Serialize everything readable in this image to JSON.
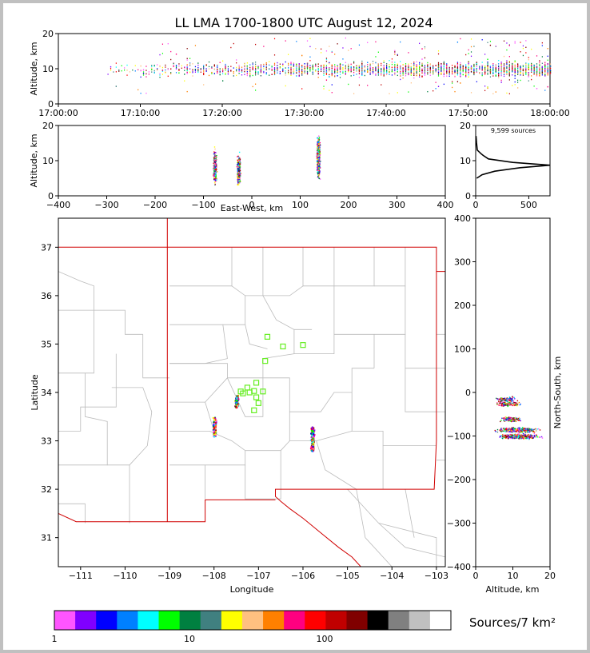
{
  "title": "LL LMA 1700-1800 UTC August 12, 2024",
  "panels": {
    "time_height": {
      "ylabel": "Altitude, km",
      "yticks": [
        "0",
        "10",
        "20"
      ],
      "xticks": [
        "17:00:00",
        "17:10:00",
        "17:20:00",
        "17:30:00",
        "17:40:00",
        "17:50:00",
        "18:00:00"
      ]
    },
    "ew_height": {
      "ylabel": "Altitude, km",
      "xlabel": "East-West, km",
      "yticks": [
        "0",
        "10",
        "20"
      ],
      "xticks": [
        "−400",
        "−300",
        "−200",
        "−100",
        "0",
        "100",
        "200",
        "300",
        "400"
      ]
    },
    "histogram": {
      "annotation": "9,599 sources",
      "yticks": [
        "0",
        "10",
        "20"
      ],
      "xticks": [
        "0",
        "500"
      ]
    },
    "plan": {
      "xlabel": "Longitude",
      "ylabel": "Latitude",
      "xticks": [
        "−111",
        "−110",
        "−109",
        "−108",
        "−107",
        "−106",
        "−105",
        "−104",
        "−103"
      ],
      "yticks": [
        "31",
        "32",
        "33",
        "34",
        "35",
        "36",
        "37"
      ]
    },
    "ns_height": {
      "xlabel": "Altitude, km",
      "ylabel": "North-South, km",
      "xticks": [
        "0",
        "10",
        "20"
      ],
      "yticks": [
        "−400",
        "−300",
        "−200",
        "−100",
        "0",
        "100",
        "200",
        "300",
        "400"
      ]
    }
  },
  "colorbar": {
    "label": "Sources/7 km²",
    "ticks": [
      "1",
      "10",
      "100"
    ],
    "colors": [
      "#ff55ff",
      "#8000ff",
      "#0000ff",
      "#0080ff",
      "#00ffff",
      "#00ff00",
      "#008040",
      "#408080",
      "#ffff00",
      "#ffc080",
      "#ff8000",
      "#ff0080",
      "#ff0000",
      "#c00000",
      "#800000",
      "#000000",
      "#808080",
      "#c0c0c0",
      "#ffffff"
    ]
  },
  "chart_data": [
    {
      "type": "scatter",
      "name": "time-height",
      "xlabel": "",
      "ylabel": "Altitude, km",
      "xlim": [
        "17:00:00",
        "18:00:00"
      ],
      "ylim": [
        0,
        20
      ],
      "time_start_min_after_1700": 4,
      "altitude_core_km": [
        5,
        15
      ],
      "activity_increasing_with_time": true
    },
    {
      "type": "scatter",
      "name": "east-west vs altitude",
      "xlabel": "East-West, km",
      "ylabel": "Altitude, km",
      "xlim": [
        -400,
        400
      ],
      "ylim": [
        0,
        20
      ],
      "clusters": [
        {
          "x_km": -77,
          "alt_min_km": 1,
          "alt_max_km": 16
        },
        {
          "x_km": -28,
          "alt_min_km": 1,
          "alt_max_km": 14
        },
        {
          "x_km": 137,
          "alt_min_km": 2,
          "alt_max_km": 20
        }
      ]
    },
    {
      "type": "line",
      "name": "altitude histogram",
      "xlim": [
        0,
        700
      ],
      "ylim": [
        0,
        20
      ],
      "total_sources": 9599,
      "profile": [
        {
          "alt_km": 5,
          "count": 10
        },
        {
          "alt_km": 6,
          "count": 60
        },
        {
          "alt_km": 7,
          "count": 180
        },
        {
          "alt_km": 8,
          "count": 420
        },
        {
          "alt_km": 8.7,
          "count": 700
        },
        {
          "alt_km": 9.5,
          "count": 350
        },
        {
          "alt_km": 10.5,
          "count": 120
        },
        {
          "alt_km": 11.5,
          "count": 70
        },
        {
          "alt_km": 12,
          "count": 50
        },
        {
          "alt_km": 13,
          "count": 15
        },
        {
          "alt_km": 15,
          "count": 8
        },
        {
          "alt_km": 17,
          "count": 3
        }
      ]
    },
    {
      "type": "scatter",
      "name": "plan view",
      "xlabel": "Longitude",
      "ylabel": "Latitude",
      "xlim": [
        -111.5,
        -102.8
      ],
      "ylim": [
        30.4,
        37.6
      ],
      "source_clusters": [
        {
          "lon": -108.0,
          "lat_min": 33.1,
          "lat_max": 33.5
        },
        {
          "lon": -107.5,
          "lat_min": 33.7,
          "lat_max": 33.95
        },
        {
          "lon": -105.8,
          "lat_min": 32.8,
          "lat_max": 33.3
        }
      ],
      "stations": [
        {
          "lon": -106.8,
          "lat": 35.15
        },
        {
          "lon": -106.45,
          "lat": 34.95
        },
        {
          "lon": -106.0,
          "lat": 34.98
        },
        {
          "lon": -106.85,
          "lat": 34.65
        },
        {
          "lon": -107.05,
          "lat": 34.2
        },
        {
          "lon": -107.25,
          "lat": 34.1
        },
        {
          "lon": -107.4,
          "lat": 34.02
        },
        {
          "lon": -107.2,
          "lat": 34.0
        },
        {
          "lon": -107.35,
          "lat": 33.98
        },
        {
          "lon": -107.1,
          "lat": 34.03
        },
        {
          "lon": -106.9,
          "lat": 34.02
        },
        {
          "lon": -107.05,
          "lat": 33.9
        },
        {
          "lon": -107.0,
          "lat": 33.78
        },
        {
          "lon": -107.1,
          "lat": 33.63
        }
      ]
    },
    {
      "type": "scatter",
      "name": "altitude vs north-south",
      "xlabel": "Altitude, km",
      "ylabel": "North-South, km",
      "xlim": [
        0,
        20
      ],
      "ylim": [
        -400,
        400
      ],
      "clusters": [
        {
          "ns_km": -15,
          "alt_min_km": 4,
          "alt_max_km": 12
        },
        {
          "ns_km": -25,
          "alt_min_km": 3,
          "alt_max_km": 14
        },
        {
          "ns_km": -60,
          "alt_min_km": 5,
          "alt_max_km": 14
        },
        {
          "ns_km": -85,
          "alt_min_km": 2,
          "alt_max_km": 20
        },
        {
          "ns_km": -100,
          "alt_min_km": 3,
          "alt_max_km": 20
        }
      ]
    }
  ]
}
